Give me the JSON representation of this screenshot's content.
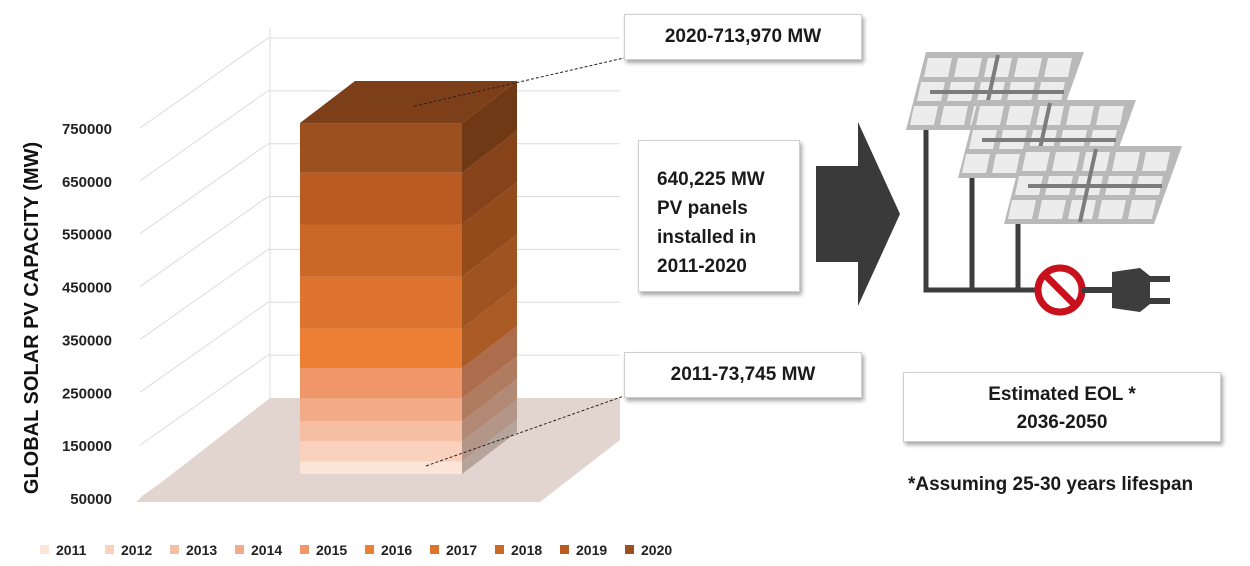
{
  "chart_data": {
    "type": "bar",
    "stacked": true,
    "style": "3d-column",
    "ylabel": "GLOBAL SOLAR PV CAPACITY (MW)",
    "xlabel": "",
    "y_ticks": [
      50000,
      150000,
      250000,
      350000,
      450000,
      550000,
      650000,
      750000
    ],
    "ylim": [
      50000,
      750000
    ],
    "grid": true,
    "legend_position": "bottom",
    "series": [
      {
        "name": "2011",
        "color": "#FCE4D8",
        "top": 73745
      },
      {
        "name": "2012",
        "color": "#F9D1BD",
        "top": 112000
      },
      {
        "name": "2013",
        "color": "#F6BEA2",
        "top": 150000
      },
      {
        "name": "2014",
        "color": "#F3AB87",
        "top": 193000
      },
      {
        "name": "2015",
        "color": "#F0976A",
        "top": 250000
      },
      {
        "name": "2016",
        "color": "#EC7F33",
        "top": 325000
      },
      {
        "name": "2017",
        "color": "#DD732C",
        "top": 423000
      },
      {
        "name": "2018",
        "color": "#CC6827",
        "top": 522000
      },
      {
        "name": "2019",
        "color": "#BA5C22",
        "top": 620000
      },
      {
        "name": "2020",
        "color": "#9C4F1F",
        "top": 713970
      }
    ]
  },
  "annotations": {
    "top_label": "2020-713,970 MW",
    "bottom_label": "2011-73,745 MW",
    "total_lines": [
      "640,225 MW",
      "PV panels",
      "installed in",
      "2011-2020"
    ],
    "eol_lines": [
      "Estimated EOL *",
      "2036-2050"
    ],
    "footnote": "*Assuming 25-30 years lifespan"
  },
  "icons": {
    "arrow": "right-arrow-icon",
    "panels": "solar-panel-icon",
    "no_sign": "prohibited-icon",
    "plug": "power-plug-icon"
  },
  "colors": {
    "arrow": "#3a3a3a",
    "no_sign": "#c8111c",
    "panel_frame": "#b9b9b9",
    "floor": "#e2d5cf"
  }
}
